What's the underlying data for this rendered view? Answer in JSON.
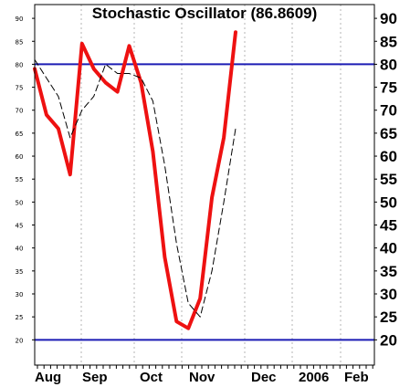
{
  "chart_data": {
    "type": "line",
    "title": "Stochastic Oscillator (86.8609)",
    "x_tick_labels": [
      "Aug",
      "Sep",
      "Oct",
      "Nov",
      "Dec",
      "2006",
      "Feb"
    ],
    "y_tick_labels": [
      "20",
      "25",
      "30",
      "35",
      "40",
      "45",
      "50",
      "55",
      "60",
      "65",
      "70",
      "75",
      "80",
      "85",
      "90"
    ],
    "ylim": [
      14.5,
      93
    ],
    "reference_lines": [
      80,
      20
    ],
    "grid": "vertical dotted gridlines at month boundaries",
    "series": [
      {
        "style": "solid",
        "color": "#ee1111",
        "values": [
          79,
          69,
          66,
          56,
          84.5,
          79,
          76,
          74,
          84,
          76,
          61,
          38,
          24,
          22.5,
          29,
          51,
          64,
          87
        ]
      },
      {
        "style": "dashed",
        "color": "#000000",
        "values": [
          81,
          77,
          73,
          64,
          70,
          73,
          80,
          78,
          78,
          77,
          72,
          58,
          41,
          28,
          25,
          35,
          50,
          66
        ]
      }
    ]
  },
  "colors": {
    "reference_line": "#1c1cb4",
    "grid": "#b4b4b4",
    "frame": "#000000"
  }
}
